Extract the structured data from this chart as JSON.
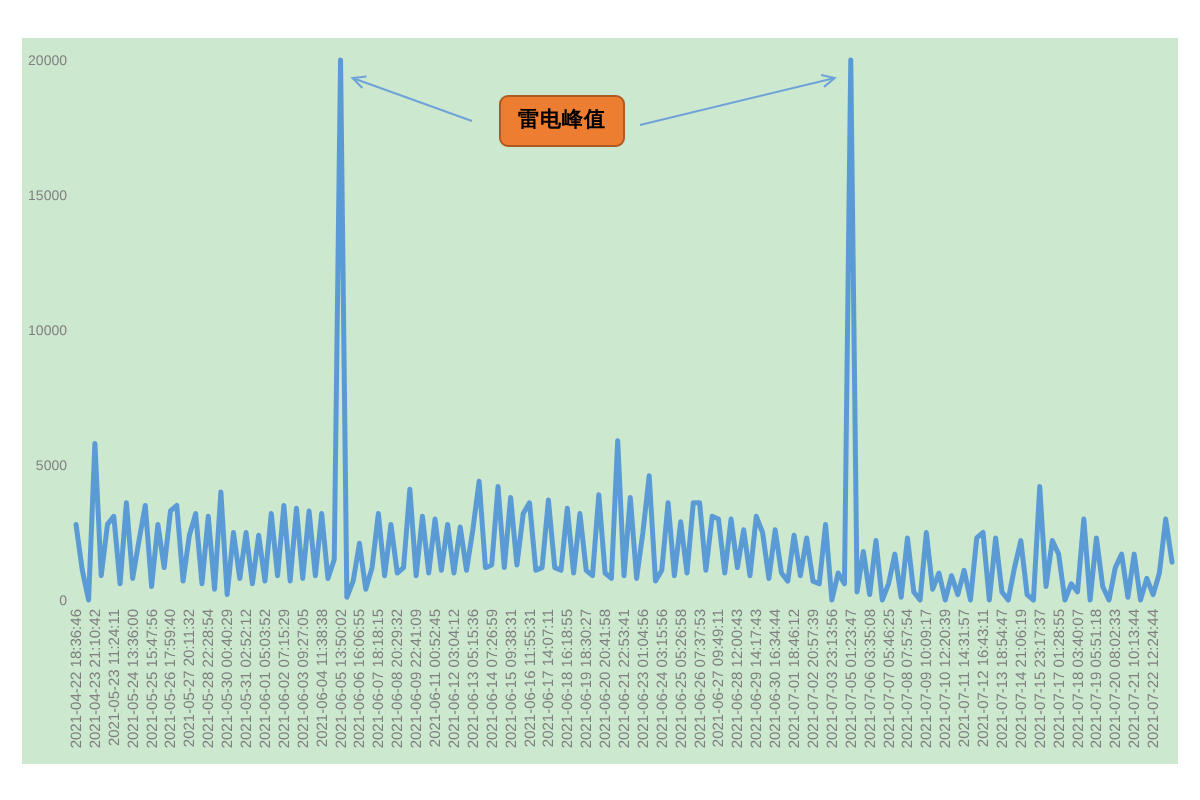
{
  "chart_data": {
    "type": "line",
    "categories": [
      "2021-04-22 18:36:46",
      null,
      null,
      "2021-04-23 21:10:42",
      null,
      null,
      "2021-05-23 11:24:11",
      null,
      null,
      "2021-05-24 13:36:00",
      null,
      null,
      "2021-05-25 15:47:56",
      null,
      null,
      "2021-05-26 17:59:40",
      null,
      null,
      "2021-05-27 20:11:32",
      null,
      null,
      "2021-05-28 22:28:54",
      null,
      null,
      "2021-05-30 00:40:29",
      null,
      null,
      "2021-05-31 02:52:12",
      null,
      null,
      "2021-06-01 05:03:52",
      null,
      null,
      "2021-06-02 07:15:29",
      null,
      null,
      "2021-06-03 09:27:05",
      null,
      null,
      "2021-06-04 11:38:38",
      null,
      null,
      "2021-06-05 13:50:02",
      null,
      null,
      "2021-06-06 16:06:55",
      null,
      null,
      "2021-06-07 18:18:15",
      null,
      null,
      "2021-06-08 20:29:32",
      null,
      null,
      "2021-06-09 22:41:09",
      null,
      null,
      "2021-06-11 00:52:45",
      null,
      null,
      "2021-06-12 03:04:12",
      null,
      null,
      "2021-06-13 05:15:36",
      null,
      null,
      "2021-06-14 07:26:59",
      null,
      null,
      "2021-06-15 09:38:31",
      null,
      null,
      "2021-06-16 11:55:31",
      null,
      null,
      "2021-06-17 14:07:11",
      null,
      null,
      "2021-06-18 16:18:55",
      null,
      null,
      "2021-06-19 18:30:27",
      null,
      null,
      "2021-06-20 20:41:58",
      null,
      null,
      "2021-06-21 22:53:41",
      null,
      null,
      "2021-06-23 01:04:56",
      null,
      null,
      "2021-06-24 03:15:56",
      null,
      null,
      "2021-06-25 05:26:58",
      null,
      null,
      "2021-06-26 07:37:53",
      null,
      null,
      "2021-06-27 09:49:11",
      null,
      null,
      "2021-06-28 12:00:43",
      null,
      null,
      "2021-06-29 14:17:43",
      null,
      null,
      "2021-06-30 16:34:44",
      null,
      null,
      "2021-07-01 18:46:12",
      null,
      null,
      "2021-07-02 20:57:39",
      null,
      null,
      "2021-07-03 23:13:56",
      null,
      null,
      "2021-07-05 01:23:47",
      null,
      null,
      "2021-07-06 03:35:08",
      null,
      null,
      "2021-07-07 05:46:25",
      null,
      null,
      "2021-07-08 07:57:54",
      null,
      null,
      "2021-07-09 10:09:17",
      null,
      null,
      "2021-07-10 12:20:39",
      null,
      null,
      "2021-07-11 14:31:57",
      null,
      null,
      "2021-07-12 16:43:11",
      null,
      null,
      "2021-07-13 18:54:47",
      null,
      null,
      "2021-07-14 21:06:19",
      null,
      null,
      "2021-07-15 23:17:37",
      null,
      null,
      "2021-07-17 01:28:55",
      null,
      null,
      "2021-07-18 03:40:07",
      null,
      null,
      "2021-07-19 05:51:18",
      null,
      null,
      "2021-07-20 08:02:33",
      null,
      null,
      "2021-07-21 10:13:44",
      null,
      null,
      "2021-07-22 12:24:44",
      null,
      null,
      null
    ],
    "values": [
      2800,
      1100,
      0,
      5800,
      900,
      2800,
      3100,
      600,
      3600,
      800,
      2200,
      3500,
      500,
      2800,
      1200,
      3300,
      3500,
      700,
      2400,
      3200,
      600,
      3100,
      400,
      4000,
      200,
      2500,
      800,
      2500,
      600,
      2400,
      700,
      3200,
      900,
      3500,
      700,
      3400,
      800,
      3300,
      900,
      3200,
      800,
      1500,
      20000,
      100,
      700,
      2100,
      400,
      1200,
      3200,
      900,
      2800,
      1000,
      1200,
      4100,
      900,
      3100,
      1000,
      3000,
      1100,
      2800,
      1000,
      2700,
      1100,
      2600,
      4400,
      1200,
      1300,
      4200,
      1200,
      3800,
      1300,
      3200,
      3600,
      1100,
      1200,
      3700,
      1200,
      1100,
      3400,
      1000,
      3200,
      1100,
      900,
      3900,
      1000,
      800,
      5900,
      900,
      3800,
      800,
      2500,
      4600,
      700,
      1100,
      3600,
      900,
      2900,
      1000,
      3600,
      3600,
      1100,
      3100,
      3000,
      1000,
      3000,
      1200,
      2600,
      900,
      3100,
      2500,
      800,
      2600,
      1000,
      700,
      2400,
      900,
      2300,
      700,
      600,
      2800,
      0,
      1000,
      600,
      20000,
      300,
      1800,
      200,
      2200,
      0,
      600,
      1700,
      100,
      2300,
      300,
      0,
      2500,
      400,
      1000,
      0,
      900,
      200,
      1100,
      0,
      2300,
      2500,
      0,
      2300,
      300,
      0,
      1200,
      2200,
      200,
      0,
      4200,
      500,
      2200,
      1700,
      0,
      600,
      300,
      3000,
      0,
      2300,
      500,
      0,
      1200,
      1700,
      100,
      1700,
      0,
      800,
      200,
      1000,
      3000,
      1400
    ],
    "color": "#5b9bd5",
    "ylim": [
      0,
      20000
    ],
    "yticks": [
      0,
      5000,
      10000,
      15000,
      20000
    ],
    "annotations": [
      "雷电峰值"
    ]
  }
}
